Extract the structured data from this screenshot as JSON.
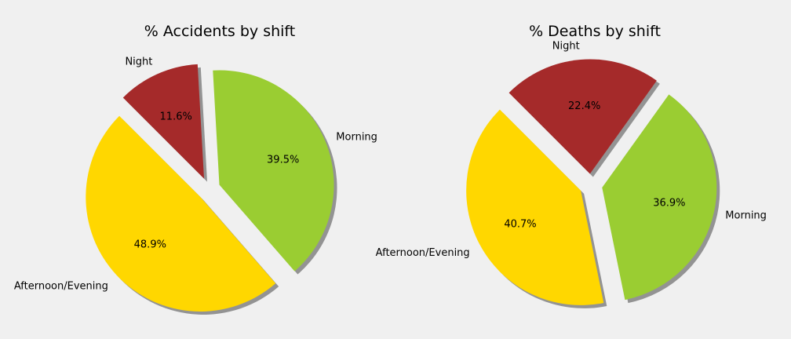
{
  "figure": {
    "background": "#f0f0f0",
    "shadow_color": "#939393"
  },
  "chart_data": [
    {
      "type": "pie",
      "title": "% Accidents by shift",
      "categories": [
        "Night",
        "Morning",
        "Afternoon/Evening"
      ],
      "values": [
        11.6,
        39.5,
        48.9
      ],
      "labels": [
        "11.6%",
        "39.5%",
        "48.9%"
      ],
      "colors": [
        "#a52a2a",
        "#9acd32",
        "#ffd700"
      ],
      "exploded": [
        true,
        true,
        true
      ],
      "shadow": true,
      "start_angle_deg": 135,
      "direction": "clockwise"
    },
    {
      "type": "pie",
      "title": "% Deaths by shift",
      "categories": [
        "Night",
        "Morning",
        "Afternoon/Evening"
      ],
      "values": [
        22.4,
        36.9,
        40.7
      ],
      "labels": [
        "22.4%",
        "36.9%",
        "40.7%"
      ],
      "colors": [
        "#a52a2a",
        "#9acd32",
        "#ffd700"
      ],
      "exploded": [
        true,
        true,
        true
      ],
      "shadow": true,
      "start_angle_deg": 135,
      "direction": "clockwise"
    }
  ]
}
